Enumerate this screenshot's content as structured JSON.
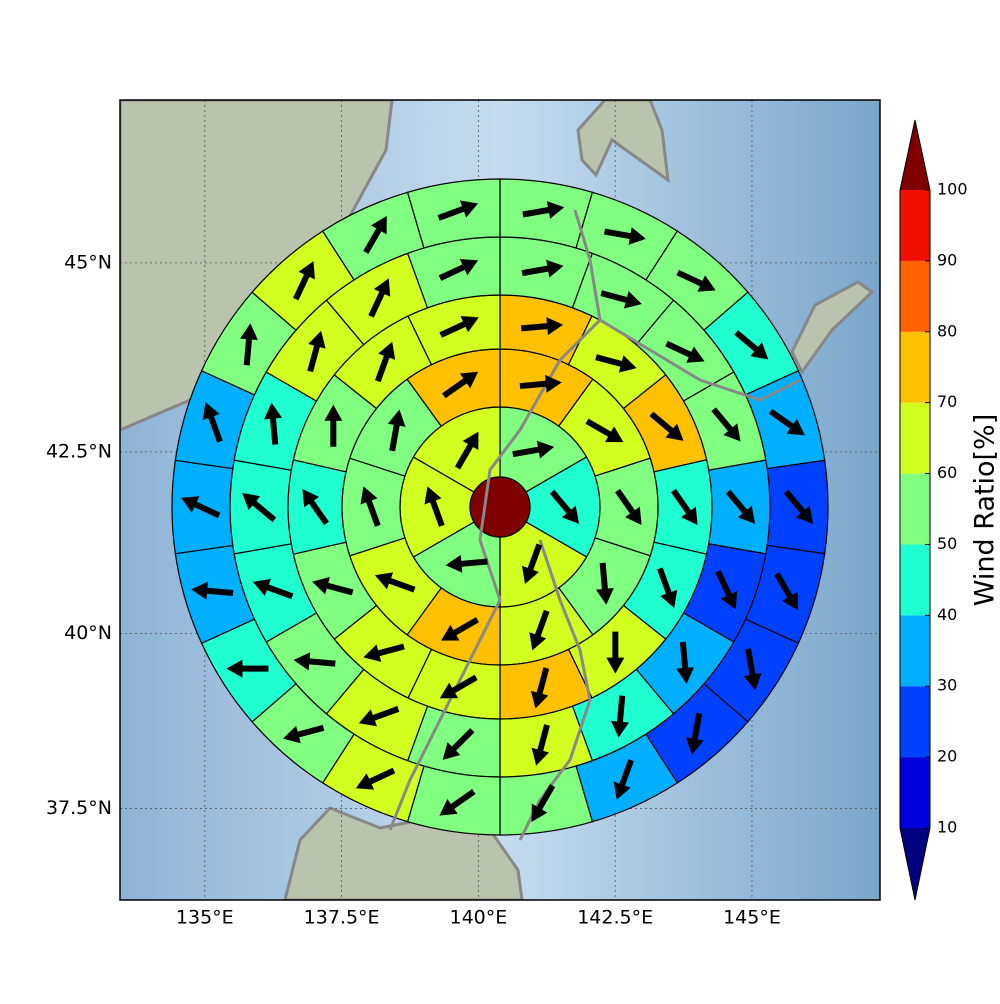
{
  "chart_data": {
    "type": "polar_sector_map",
    "projection": "mercator",
    "xlim": [
      133.45,
      147.34
    ],
    "ylim": [
      36.16,
      47.07
    ],
    "xticks": [
      {
        "value": 135,
        "label": "135°E"
      },
      {
        "value": 137.5,
        "label": "137.5°E"
      },
      {
        "value": 140,
        "label": "140°E"
      },
      {
        "value": 142.5,
        "label": "142.5°E"
      },
      {
        "value": 145,
        "label": "145°E"
      }
    ],
    "yticks": [
      {
        "value": 37.5,
        "label": "37.5°N"
      },
      {
        "value": 40,
        "label": "40°N"
      },
      {
        "value": 42.5,
        "label": "42.5°N"
      },
      {
        "value": 45,
        "label": "45°N"
      }
    ],
    "grid": true,
    "center_value": 105,
    "rings": [
      {
        "values": [
          55,
          45,
          65,
          55,
          65,
          65
        ],
        "directions": [
          80,
          140,
          200,
          265,
          340,
          30
        ]
      },
      {
        "values": [
          75,
          65,
          55,
          55,
          65,
          75,
          65,
          55,
          55,
          75
        ],
        "directions": [
          85,
          120,
          145,
          175,
          200,
          240,
          290,
          340,
          10,
          55
        ]
      },
      {
        "values": [
          75,
          65,
          75,
          45,
          45,
          65,
          75,
          65,
          65,
          55,
          45,
          55,
          65,
          65
        ],
        "directions": [
          85,
          105,
          130,
          145,
          160,
          180,
          195,
          240,
          255,
          285,
          325,
          0,
          20,
          65
        ]
      },
      {
        "values": [
          55,
          55,
          55,
          55,
          35,
          25,
          35,
          45,
          65,
          55,
          65,
          55,
          45,
          45,
          45,
          65,
          65,
          55
        ],
        "directions": [
          80,
          105,
          115,
          140,
          140,
          155,
          175,
          185,
          195,
          225,
          250,
          275,
          290,
          310,
          355,
          15,
          25,
          65
        ]
      },
      {
        "values": [
          55,
          55,
          55,
          45,
          35,
          25,
          25,
          25,
          25,
          35,
          55,
          55,
          65,
          55,
          45,
          35,
          35,
          35,
          55,
          65,
          55,
          55
        ],
        "directions": [
          80,
          100,
          115,
          130,
          125,
          140,
          150,
          170,
          190,
          200,
          210,
          235,
          245,
          255,
          270,
          275,
          295,
          340,
          5,
          25,
          30,
          70
        ]
      }
    ],
    "arrow_color": "#000000",
    "colorbar": {
      "label": "Wind Ratio[%]",
      "ticks": [
        10,
        20,
        30,
        40,
        50,
        60,
        70,
        80,
        90,
        100
      ],
      "colors": [
        "#0000dd",
        "#0040ff",
        "#00b0ff",
        "#20ffd0",
        "#80ff80",
        "#d0ff20",
        "#ffc000",
        "#ff6000",
        "#f01000"
      ],
      "under_color": "#000080",
      "over_color": "#800000"
    }
  }
}
